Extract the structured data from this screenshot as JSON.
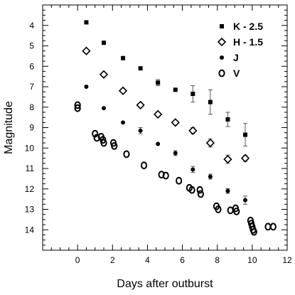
{
  "chart_data": {
    "type": "scatter",
    "title": "",
    "xlabel": "Days after outburst",
    "ylabel": "Magnitude",
    "xlim": [
      -2,
      12
    ],
    "ylim": [
      15,
      3
    ],
    "y_inverted": true,
    "x_ticks": [
      0,
      2,
      4,
      6,
      8,
      10,
      12
    ],
    "y_ticks": [
      4,
      5,
      6,
      7,
      8,
      9,
      10,
      11,
      12,
      13,
      14
    ],
    "grid": false,
    "legend_position": "top-right",
    "series": [
      {
        "name": "K - 2.5",
        "marker": "filled-square",
        "points": [
          {
            "x": 0.5,
            "y": 3.85
          },
          {
            "x": 1.5,
            "y": 4.85
          },
          {
            "x": 2.6,
            "y": 5.6
          },
          {
            "x": 3.6,
            "y": 6.1
          },
          {
            "x": 4.6,
            "y": 6.8,
            "err": 0.15
          },
          {
            "x": 5.6,
            "y": 7.15
          },
          {
            "x": 6.6,
            "y": 7.35,
            "err": 0.4
          },
          {
            "x": 7.6,
            "y": 7.75,
            "err": 0.6
          },
          {
            "x": 8.6,
            "y": 8.6,
            "err": 0.35
          },
          {
            "x": 9.6,
            "y": 9.35,
            "err": 0.55
          }
        ]
      },
      {
        "name": "H - 1.5",
        "marker": "open-diamond",
        "points": [
          {
            "x": 0.5,
            "y": 5.25
          },
          {
            "x": 1.5,
            "y": 6.4
          },
          {
            "x": 2.6,
            "y": 7.2
          },
          {
            "x": 3.6,
            "y": 7.9
          },
          {
            "x": 4.6,
            "y": 8.35
          },
          {
            "x": 5.6,
            "y": 8.75
          },
          {
            "x": 6.6,
            "y": 9.15,
            "err": 0.15
          },
          {
            "x": 7.6,
            "y": 9.75,
            "err": 0.2
          },
          {
            "x": 8.6,
            "y": 10.55,
            "err": 0.2
          },
          {
            "x": 9.6,
            "y": 10.5,
            "err": 0.15
          }
        ]
      },
      {
        "name": "J",
        "marker": "filled-circle",
        "points": [
          {
            "x": 0.5,
            "y": 7.0
          },
          {
            "x": 1.5,
            "y": 8.05
          },
          {
            "x": 2.6,
            "y": 8.75
          },
          {
            "x": 3.6,
            "y": 9.15,
            "err": 0.15
          },
          {
            "x": 4.6,
            "y": 9.8
          },
          {
            "x": 5.6,
            "y": 10.25,
            "err": 0.12
          },
          {
            "x": 6.6,
            "y": 11.05,
            "err": 0.15
          },
          {
            "x": 7.6,
            "y": 11.4,
            "err": 0.12
          },
          {
            "x": 8.6,
            "y": 12.1,
            "err": 0.12
          },
          {
            "x": 9.6,
            "y": 12.55,
            "err": 0.2
          }
        ]
      },
      {
        "name": "V",
        "marker": "open-circle",
        "points": [
          {
            "x": 0.0,
            "y": 7.9
          },
          {
            "x": 0.0,
            "y": 8.05
          },
          {
            "x": 1.0,
            "y": 9.3
          },
          {
            "x": 1.1,
            "y": 9.5
          },
          {
            "x": 1.35,
            "y": 9.45
          },
          {
            "x": 1.45,
            "y": 9.6
          },
          {
            "x": 1.5,
            "y": 9.75
          },
          {
            "x": 2.05,
            "y": 9.75
          },
          {
            "x": 2.1,
            "y": 9.9
          },
          {
            "x": 2.8,
            "y": 10.3
          },
          {
            "x": 3.8,
            "y": 10.85
          },
          {
            "x": 4.8,
            "y": 11.3
          },
          {
            "x": 5.05,
            "y": 11.35
          },
          {
            "x": 5.8,
            "y": 11.6
          },
          {
            "x": 6.4,
            "y": 11.95
          },
          {
            "x": 6.55,
            "y": 12.05
          },
          {
            "x": 7.0,
            "y": 12.05
          },
          {
            "x": 7.05,
            "y": 12.25
          },
          {
            "x": 7.95,
            "y": 12.85
          },
          {
            "x": 8.05,
            "y": 13.0
          },
          {
            "x": 8.75,
            "y": 13.05
          },
          {
            "x": 9.05,
            "y": 12.95
          },
          {
            "x": 9.1,
            "y": 13.1
          },
          {
            "x": 9.9,
            "y": 13.55
          },
          {
            "x": 9.95,
            "y": 13.7
          },
          {
            "x": 10.0,
            "y": 13.85
          },
          {
            "x": 10.05,
            "y": 14.0
          },
          {
            "x": 10.1,
            "y": 14.1
          },
          {
            "x": 10.9,
            "y": 13.85
          },
          {
            "x": 11.2,
            "y": 13.85
          }
        ]
      }
    ]
  }
}
